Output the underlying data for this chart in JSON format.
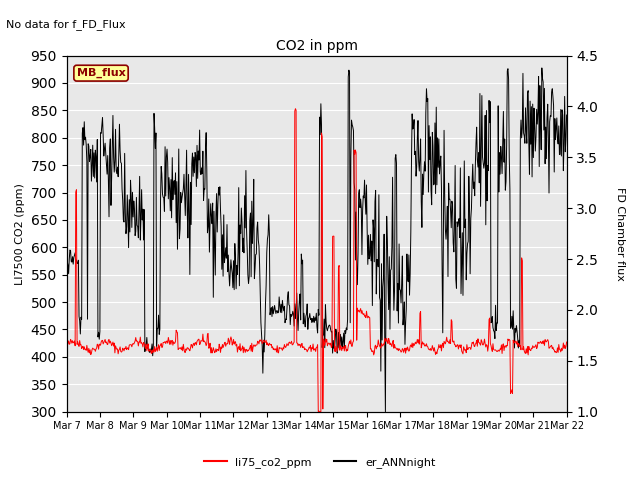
{
  "title": "CO2 in ppm",
  "top_left_text": "No data for f_FD_Flux",
  "ylabel_left": "LI7500 CO2 (ppm)",
  "ylabel_right": "FD Chamber flux",
  "ylim_left": [
    300,
    950
  ],
  "ylim_right": [
    1.0,
    4.5
  ],
  "yticks_left": [
    300,
    350,
    400,
    450,
    500,
    550,
    600,
    650,
    700,
    750,
    800,
    850,
    900,
    950
  ],
  "yticks_right": [
    1.0,
    1.5,
    2.0,
    2.5,
    3.0,
    3.5,
    4.0,
    4.5
  ],
  "xtick_labels": [
    "Mar 7",
    "Mar 8",
    "Mar 9",
    "Mar 10",
    "Mar 11",
    "Mar 12",
    "Mar 13",
    "Mar 14",
    "Mar 15",
    "Mar 16",
    "Mar 17",
    "Mar 18",
    "Mar 19",
    "Mar 20",
    "Mar 21",
    "Mar 22"
  ],
  "legend_labels": [
    "li75_co2_ppm",
    "er_ANNnight"
  ],
  "legend_colors": [
    "red",
    "black"
  ],
  "mb_flux_box_color": "#ffff99",
  "mb_flux_text_color": "darkred",
  "mb_flux_border_color": "darkred",
  "background_color": "white",
  "plot_bg_color": "#e8e8e8",
  "line_color_red": "red",
  "line_color_black": "black",
  "grid_color": "white"
}
